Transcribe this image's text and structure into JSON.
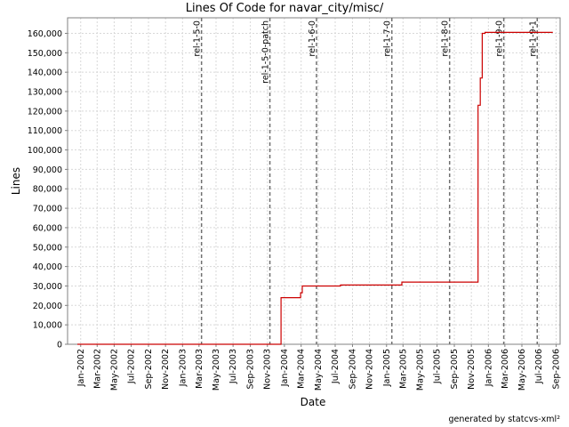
{
  "chart_data": {
    "type": "line",
    "title": "Lines Of Code for navar_city/misc/",
    "xlabel": "Date",
    "ylabel": "Lines",
    "ylim": [
      0,
      168000
    ],
    "xlim": [
      "2001-11-15",
      "2006-09-15"
    ],
    "grid": true,
    "y_ticks": [
      0,
      10000,
      20000,
      30000,
      40000,
      50000,
      60000,
      70000,
      80000,
      90000,
      100000,
      110000,
      120000,
      130000,
      140000,
      150000,
      160000
    ],
    "y_tick_labels": [
      "0",
      "10,000",
      "20,000",
      "30,000",
      "40,000",
      "50,000",
      "60,000",
      "70,000",
      "80,000",
      "90,000",
      "100,000",
      "110,000",
      "120,000",
      "130,000",
      "140,000",
      "150,000",
      "160,000"
    ],
    "x_ticks": [
      "2002-01-01",
      "2002-03-01",
      "2002-05-01",
      "2002-07-01",
      "2002-09-01",
      "2002-11-01",
      "2003-01-01",
      "2003-03-01",
      "2003-05-01",
      "2003-07-01",
      "2003-09-01",
      "2003-11-01",
      "2004-01-01",
      "2004-03-01",
      "2004-05-01",
      "2004-07-01",
      "2004-09-01",
      "2004-11-01",
      "2005-01-01",
      "2005-03-01",
      "2005-05-01",
      "2005-07-01",
      "2005-09-01",
      "2005-11-01",
      "2006-01-01",
      "2006-03-01",
      "2006-05-01",
      "2006-07-01",
      "2006-09-01"
    ],
    "x_tick_labels": [
      "Jan-2002",
      "Mar-2002",
      "May-2002",
      "Jul-2002",
      "Sep-2002",
      "Nov-2002",
      "Jan-2003",
      "Mar-2003",
      "May-2003",
      "Jul-2003",
      "Sep-2003",
      "Nov-2003",
      "Jan-2004",
      "Mar-2004",
      "May-2004",
      "Jul-2004",
      "Sep-2004",
      "Nov-2004",
      "Jan-2005",
      "Mar-2005",
      "May-2005",
      "Jul-2005",
      "Sep-2005",
      "Nov-2005",
      "Jan-2006",
      "Mar-2006",
      "May-2006",
      "Jul-2006",
      "Sep-2006"
    ],
    "series": [
      {
        "color": "#cc0000",
        "step": true,
        "points": [
          {
            "x": "2001-12-20",
            "y": 0
          },
          {
            "x": "2003-12-20",
            "y": 0
          },
          {
            "x": "2003-12-20",
            "y": 24000
          },
          {
            "x": "2004-02-28",
            "y": 24000
          },
          {
            "x": "2004-02-28",
            "y": 26500
          },
          {
            "x": "2004-03-05",
            "y": 26500
          },
          {
            "x": "2004-03-05",
            "y": 30000
          },
          {
            "x": "2004-07-20",
            "y": 30000
          },
          {
            "x": "2004-07-20",
            "y": 30500
          },
          {
            "x": "2005-02-25",
            "y": 30500
          },
          {
            "x": "2005-02-25",
            "y": 32000
          },
          {
            "x": "2005-11-25",
            "y": 32000
          },
          {
            "x": "2005-11-25",
            "y": 123000
          },
          {
            "x": "2005-12-03",
            "y": 123000
          },
          {
            "x": "2005-12-03",
            "y": 137000
          },
          {
            "x": "2005-12-10",
            "y": 137000
          },
          {
            "x": "2005-12-10",
            "y": 160000
          },
          {
            "x": "2005-12-20",
            "y": 160000
          },
          {
            "x": "2005-12-20",
            "y": 160500
          },
          {
            "x": "2006-08-20",
            "y": 160500
          }
        ]
      }
    ],
    "releases": [
      {
        "label": "rel-1-5-0",
        "date": "2003-03-10"
      },
      {
        "label": "rel-1-5-0-patch",
        "date": "2003-11-10"
      },
      {
        "label": "rel-1-6-0",
        "date": "2004-04-25"
      },
      {
        "label": "rel-1-7-0",
        "date": "2005-01-20"
      },
      {
        "label": "rel-1-8-0",
        "date": "2005-08-15"
      },
      {
        "label": "rel-1-9-0",
        "date": "2006-02-25"
      },
      {
        "label": "rel-1-9-1",
        "date": "2006-06-25"
      }
    ]
  },
  "footer": {
    "generated_by": "generated by statcvs-xml²"
  }
}
